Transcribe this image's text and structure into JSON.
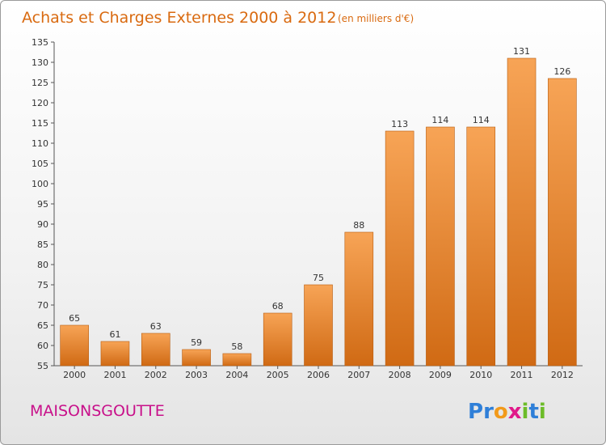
{
  "header": {
    "title": "Achats et Charges Externes 2000 à 2012",
    "unit": "(en milliers d'€)"
  },
  "commune": "MAISONSGOUTTE",
  "logo": {
    "text": "Proxiti",
    "letters": [
      {
        "char": "P",
        "color": "#2f7fd8"
      },
      {
        "char": "r",
        "color": "#2f7fd8"
      },
      {
        "char": "o",
        "color": "#f29a1a"
      },
      {
        "char": "x",
        "color": "#e0198a"
      },
      {
        "char": "i",
        "color": "#6cbc28"
      },
      {
        "char": "t",
        "color": "#2f7fd8"
      },
      {
        "char": "i",
        "color": "#6cbc28"
      }
    ]
  },
  "chart_data": {
    "type": "bar",
    "title": "Achats et Charges Externes 2000 à 2012",
    "subtitle": "(en milliers d'€)",
    "xlabel": "",
    "ylabel": "",
    "categories": [
      "2000",
      "2001",
      "2002",
      "2003",
      "2004",
      "2005",
      "2006",
      "2007",
      "2008",
      "2009",
      "2010",
      "2011",
      "2012"
    ],
    "values": [
      65,
      61,
      63,
      59,
      58,
      68,
      75,
      88,
      113,
      114,
      114,
      131,
      126
    ],
    "ylim": [
      55,
      135
    ],
    "yticks": [
      55,
      60,
      65,
      70,
      75,
      80,
      85,
      90,
      95,
      100,
      105,
      110,
      115,
      120,
      125,
      130,
      135
    ],
    "grid": false,
    "legend": "none",
    "bar_color_top": "#f7a456",
    "bar_color_bottom": "#d06a14"
  }
}
